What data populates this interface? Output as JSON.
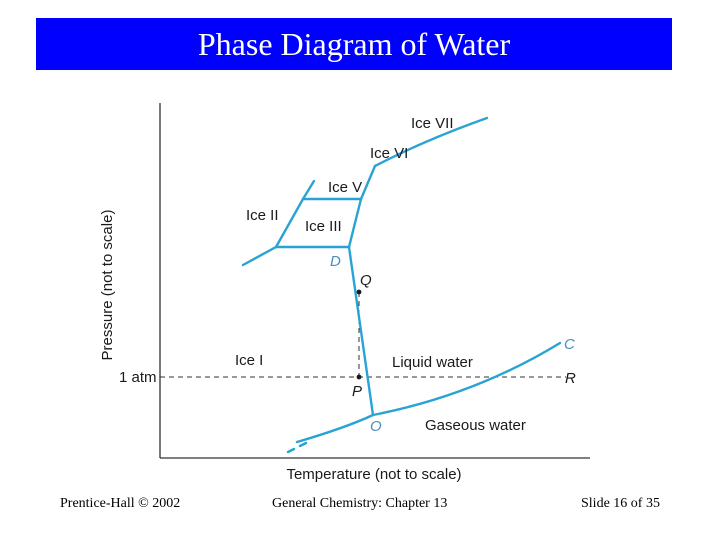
{
  "slide": {
    "title": "Phase Diagram of Water",
    "title_bar_color": "#0000ff"
  },
  "diagram": {
    "y_axis_label": "Pressure (not to scale)",
    "x_axis_label": "Temperature (not to scale)",
    "one_atm_label": "1 atm",
    "line_color": "#29a3d4",
    "regions": {
      "ice_vii": "Ice VII",
      "ice_vi": "Ice VI",
      "ice_v": "Ice V",
      "ice_ii": "Ice II",
      "ice_iii": "Ice III",
      "ice_i": "Ice I",
      "liquid": "Liquid water",
      "gas": "Gaseous water"
    },
    "points": {
      "d": "D",
      "q": "Q",
      "p": "P",
      "o": "O",
      "c": "C",
      "r": "R"
    }
  },
  "footer": {
    "left": "Prentice-Hall © 2002",
    "center": "General Chemistry: Chapter 13",
    "right": "Slide 16 of 35"
  }
}
